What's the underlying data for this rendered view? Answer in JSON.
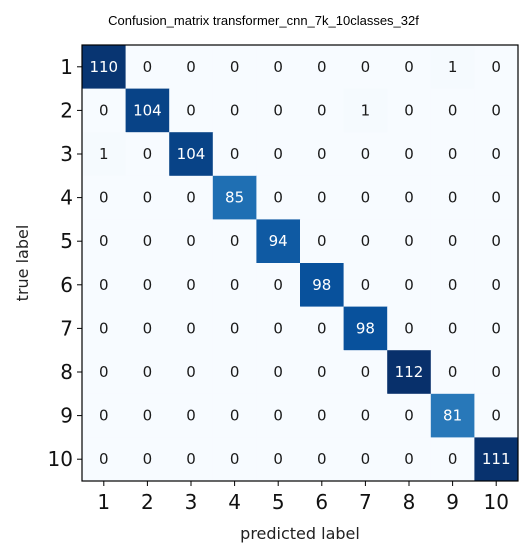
{
  "chart_data": {
    "type": "heatmap",
    "title": "Confusion_matrix transformer_cnn_7k_10classes_32f",
    "xlabel": "predicted label",
    "ylabel": "true label",
    "x_tick_labels": [
      "1",
      "2",
      "3",
      "4",
      "5",
      "6",
      "7",
      "8",
      "9",
      "10"
    ],
    "y_tick_labels": [
      "1",
      "2",
      "3",
      "4",
      "5",
      "6",
      "7",
      "8",
      "9",
      "10"
    ],
    "matrix": [
      [
        110,
        0,
        0,
        0,
        0,
        0,
        0,
        0,
        1,
        0
      ],
      [
        0,
        104,
        0,
        0,
        0,
        0,
        1,
        0,
        0,
        0
      ],
      [
        1,
        0,
        104,
        0,
        0,
        0,
        0,
        0,
        0,
        0
      ],
      [
        0,
        0,
        0,
        85,
        0,
        0,
        0,
        0,
        0,
        0
      ],
      [
        0,
        0,
        0,
        0,
        94,
        0,
        0,
        0,
        0,
        0
      ],
      [
        0,
        0,
        0,
        0,
        0,
        98,
        0,
        0,
        0,
        0
      ],
      [
        0,
        0,
        0,
        0,
        0,
        0,
        98,
        0,
        0,
        0
      ],
      [
        0,
        0,
        0,
        0,
        0,
        0,
        0,
        112,
        0,
        0
      ],
      [
        0,
        0,
        0,
        0,
        0,
        0,
        0,
        0,
        81,
        0
      ],
      [
        0,
        0,
        0,
        0,
        0,
        0,
        0,
        0,
        0,
        111
      ]
    ],
    "colormap": "Blues",
    "value_range": [
      0,
      112
    ],
    "grid": false
  }
}
